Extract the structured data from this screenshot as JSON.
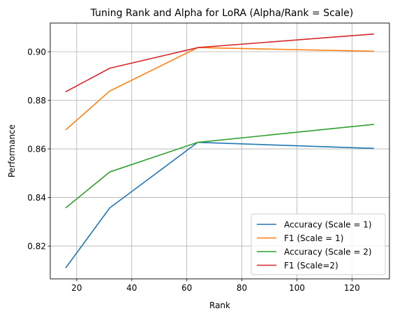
{
  "chart_data": {
    "type": "line",
    "title": "Tuning Rank and Alpha for LoRA (Alpha/Rank = Scale)",
    "xlabel": "Rank",
    "ylabel": "Performance",
    "x": [
      16,
      32,
      64,
      128
    ],
    "xlim": [
      10.4,
      133.6
    ],
    "ylim": [
      0.8065,
      0.9118
    ],
    "xticks": [
      20,
      40,
      60,
      80,
      100,
      120
    ],
    "yticks": [
      0.82,
      0.84,
      0.86,
      0.88,
      0.9
    ],
    "ytick_labels": [
      "0.82",
      "0.84",
      "0.86",
      "0.88",
      "0.90"
    ],
    "grid": true,
    "legend": "lower-right",
    "series": [
      {
        "name": "Accuracy (Scale = 1)",
        "color": "#1f77b4",
        "values": [
          0.811,
          0.8357,
          0.8627,
          0.8602
        ]
      },
      {
        "name": "F1 (Scale = 1)",
        "color": "#ff7f0e",
        "values": [
          0.8678,
          0.8838,
          0.9017,
          0.9002
        ]
      },
      {
        "name": "Accuracy (Scale = 2)",
        "color": "#2ca02c",
        "values": [
          0.8357,
          0.8505,
          0.8627,
          0.8701
        ]
      },
      {
        "name": "F1 (Scale=2)",
        "color": "#d62728",
        "values": [
          0.8835,
          0.8932,
          0.9017,
          0.9073
        ]
      }
    ]
  }
}
